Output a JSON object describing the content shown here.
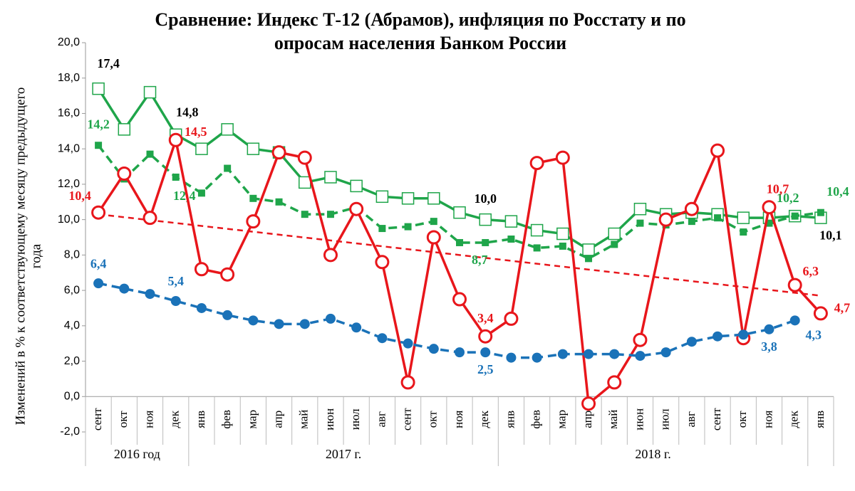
{
  "chart_data": {
    "type": "line",
    "title": [
      "Сравнение: Индекс Т-12 (Абрамов), инфляция по Росстату и по",
      "опросам населения Банком России"
    ],
    "y_label": [
      "Изменений в % к соответствующему месяцу предыдущего",
      "года"
    ],
    "categories": [
      "сент",
      "окт",
      "ноя",
      "дек",
      "янв",
      "фев",
      "мар",
      "апр",
      "май",
      "июн",
      "июл",
      "авг",
      "сент",
      "окт",
      "ноя",
      "дек",
      "янв",
      "фев",
      "мар",
      "апр",
      "май",
      "июн",
      "июл",
      "авг",
      "сент",
      "окт",
      "ноя",
      "дек",
      "янв"
    ],
    "groups": [
      {
        "label": "2016 год",
        "count": 4
      },
      {
        "label": "2017 г.",
        "count": 12
      },
      {
        "label": "2018 г.",
        "count": 12
      },
      {
        "label": null,
        "count": 1
      }
    ],
    "ylim": [
      -2,
      20
    ],
    "yticks": [
      {
        "value": -2,
        "label": "-2,0"
      },
      {
        "value": 0,
        "label": "0,0"
      },
      {
        "value": 2,
        "label": "2,0"
      },
      {
        "value": 4,
        "label": "4,0"
      },
      {
        "value": 6,
        "label": "6,0"
      },
      {
        "value": 8,
        "label": "8,0"
      },
      {
        "value": 10,
        "label": "10,0"
      },
      {
        "value": 12,
        "label": "12,0"
      },
      {
        "value": 14,
        "label": "14,0"
      },
      {
        "value": 16,
        "label": "16,0"
      },
      {
        "value": 18,
        "label": "18,0"
      },
      {
        "value": 20,
        "label": "20,0"
      }
    ],
    "series": [
      {
        "color": "#1fa54a",
        "label_color": "#000000",
        "line": "solid",
        "marker": "square-open",
        "values": [
          17.4,
          15.1,
          17.2,
          14.8,
          14.0,
          15.1,
          14.0,
          13.8,
          12.1,
          12.4,
          11.9,
          11.3,
          11.2,
          11.2,
          10.4,
          10.0,
          9.9,
          9.4,
          9.2,
          8.3,
          9.2,
          10.6,
          10.3,
          10.4,
          10.3,
          10.1,
          10.1,
          10.2,
          10.1
        ],
        "value_labels": [
          "17,4",
          null,
          null,
          "14,8",
          null,
          null,
          null,
          null,
          null,
          null,
          null,
          null,
          null,
          null,
          null,
          "10,0",
          null,
          null,
          null,
          null,
          null,
          null,
          null,
          null,
          null,
          null,
          null,
          null,
          "10,1"
        ]
      },
      {
        "color": "#1fa54a",
        "label_color": "#1fa54a",
        "line": "dashed",
        "marker": "square",
        "values": [
          14.2,
          12.3,
          13.7,
          12.4,
          11.5,
          12.9,
          11.2,
          11.0,
          10.3,
          10.3,
          10.7,
          9.5,
          9.6,
          9.9,
          8.7,
          8.7,
          8.9,
          8.4,
          8.5,
          7.8,
          8.6,
          9.8,
          9.7,
          9.9,
          10.1,
          9.3,
          9.8,
          10.2,
          10.4
        ],
        "value_labels": [
          "14,2",
          null,
          null,
          "12,4",
          null,
          null,
          null,
          null,
          null,
          null,
          null,
          null,
          null,
          null,
          null,
          "8,7",
          null,
          null,
          null,
          null,
          null,
          null,
          null,
          null,
          null,
          null,
          null,
          "10,2",
          "10,4"
        ]
      },
      {
        "color": "#e8161b",
        "label_color": "#e8161b",
        "line": "solid",
        "marker": "circle-open",
        "values": [
          10.4,
          12.6,
          10.1,
          14.5,
          7.2,
          6.9,
          9.9,
          13.8,
          13.5,
          8.0,
          10.6,
          7.6,
          0.8,
          9.0,
          5.5,
          3.4,
          4.4,
          13.2,
          13.5,
          -0.4,
          0.8,
          3.2,
          10.0,
          10.6,
          13.9,
          3.3,
          10.7,
          6.3,
          4.7
        ],
        "value_labels": [
          "10,4",
          null,
          null,
          "14,5",
          null,
          null,
          null,
          null,
          null,
          null,
          null,
          null,
          null,
          null,
          null,
          "3,4",
          null,
          null,
          null,
          null,
          null,
          null,
          null,
          null,
          null,
          null,
          "10,7",
          "6,3",
          "4,7"
        ]
      },
      {
        "color": "#1a72b8",
        "label_color": "#1a72b8",
        "line": "dashed",
        "marker": "circle",
        "values": [
          6.4,
          6.1,
          5.8,
          5.4,
          5.0,
          4.6,
          4.3,
          4.1,
          4.1,
          4.4,
          3.9,
          3.3,
          3.0,
          2.7,
          2.5,
          2.5,
          2.2,
          2.2,
          2.4,
          2.4,
          2.4,
          2.3,
          2.5,
          3.1,
          3.4,
          3.5,
          3.8,
          4.3,
          null
        ],
        "value_labels": [
          "6,4",
          null,
          null,
          "5,4",
          null,
          null,
          null,
          null,
          null,
          null,
          null,
          null,
          null,
          null,
          null,
          "2,5",
          null,
          null,
          null,
          null,
          null,
          null,
          null,
          null,
          null,
          null,
          "3,8",
          "4,3",
          null
        ]
      }
    ],
    "trend": {
      "color": "#e8161b",
      "start": 10.3,
      "end": 5.7
    }
  }
}
